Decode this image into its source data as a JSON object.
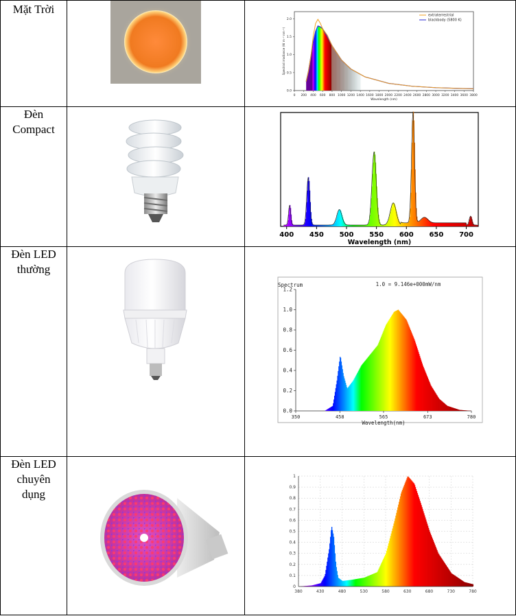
{
  "rows": [
    {
      "label": "Mặt Trời"
    },
    {
      "label": "Đèn Compact"
    },
    {
      "label": "Đèn LED thường"
    },
    {
      "label": "Đèn LED chuyên dụng"
    }
  ],
  "chart_data": [
    {
      "type": "line",
      "legend": [
        "extraterrestrial",
        "blackbody (5800 K)"
      ],
      "xlabel": "Wavelength (nm)",
      "ylabel": "Spectral irradiance (W m⁻² nm⁻¹)",
      "x_ticks": [
        0,
        200,
        400,
        600,
        800,
        1000,
        1200,
        1400,
        1600,
        1800,
        2000,
        2200,
        2400,
        2600,
        2800,
        3000,
        3200,
        3400,
        3600,
        3800
      ],
      "y_ticks": [
        0.0,
        0.5,
        1.0,
        1.5,
        2.0
      ],
      "series": [
        {
          "name": "blackbody (5800 K)",
          "x": [
            250,
            300,
            350,
            400,
            450,
            500,
            550,
            600,
            700,
            800,
            1000,
            1200,
            1500,
            2000,
            2500,
            3000,
            3500,
            3800
          ],
          "y": [
            0.25,
            0.55,
            0.95,
            1.35,
            1.65,
            1.8,
            1.78,
            1.72,
            1.5,
            1.25,
            0.85,
            0.6,
            0.38,
            0.2,
            0.12,
            0.08,
            0.06,
            0.05
          ]
        }
      ],
      "xlim": [
        0,
        3800
      ],
      "ylim": [
        0,
        2.2
      ]
    },
    {
      "type": "area",
      "xlabel": "Wavelength (nm)",
      "x_ticks": [
        400,
        450,
        500,
        550,
        600,
        650,
        700
      ],
      "peaks_nm": [
        405,
        436,
        488,
        546,
        578,
        611,
        630,
        707
      ],
      "peaks_rel": [
        0.18,
        0.43,
        0.14,
        0.66,
        0.2,
        1.0,
        0.05,
        0.08
      ],
      "xlim": [
        390,
        720
      ],
      "ylim": [
        0,
        1
      ]
    },
    {
      "type": "area",
      "title": "Spectrum",
      "annotation": "1.0 = 9.146e+000mW/nm",
      "xlabel": "Wavelength(nm)",
      "x_ticks": [
        350,
        458,
        565,
        673,
        780
      ],
      "y_ticks": [
        "0.0",
        "0.2",
        "0.4",
        "0.6",
        "0.8",
        "1.0",
        "1.2"
      ],
      "x": [
        350,
        420,
        440,
        450,
        458,
        466,
        475,
        490,
        510,
        530,
        550,
        570,
        590,
        600,
        620,
        640,
        660,
        680,
        700,
        720,
        750,
        780
      ],
      "y": [
        0,
        0,
        0.05,
        0.3,
        0.55,
        0.35,
        0.22,
        0.3,
        0.45,
        0.55,
        0.65,
        0.85,
        0.98,
        1.0,
        0.9,
        0.7,
        0.45,
        0.25,
        0.12,
        0.05,
        0.01,
        0
      ],
      "xlim": [
        350,
        780
      ],
      "ylim": [
        0,
        1.2
      ]
    },
    {
      "type": "area",
      "x_ticks": [
        380,
        430,
        480,
        530,
        580,
        630,
        680,
        730,
        780
      ],
      "y_ticks": [
        "0",
        "0.1",
        "0.2",
        "0.3",
        "0.4",
        "0.5",
        "0.6",
        "0.7",
        "0.8",
        "0.9",
        "1"
      ],
      "x": [
        380,
        410,
        430,
        440,
        450,
        455,
        460,
        465,
        470,
        480,
        500,
        530,
        560,
        580,
        600,
        615,
        630,
        645,
        660,
        680,
        700,
        730,
        760,
        780
      ],
      "y": [
        0,
        0.01,
        0.03,
        0.1,
        0.35,
        0.55,
        0.45,
        0.2,
        0.08,
        0.05,
        0.06,
        0.08,
        0.13,
        0.3,
        0.6,
        0.85,
        1.0,
        0.93,
        0.75,
        0.5,
        0.3,
        0.12,
        0.04,
        0.02
      ],
      "xlim": [
        380,
        780
      ],
      "ylim": [
        0,
        1
      ]
    }
  ]
}
